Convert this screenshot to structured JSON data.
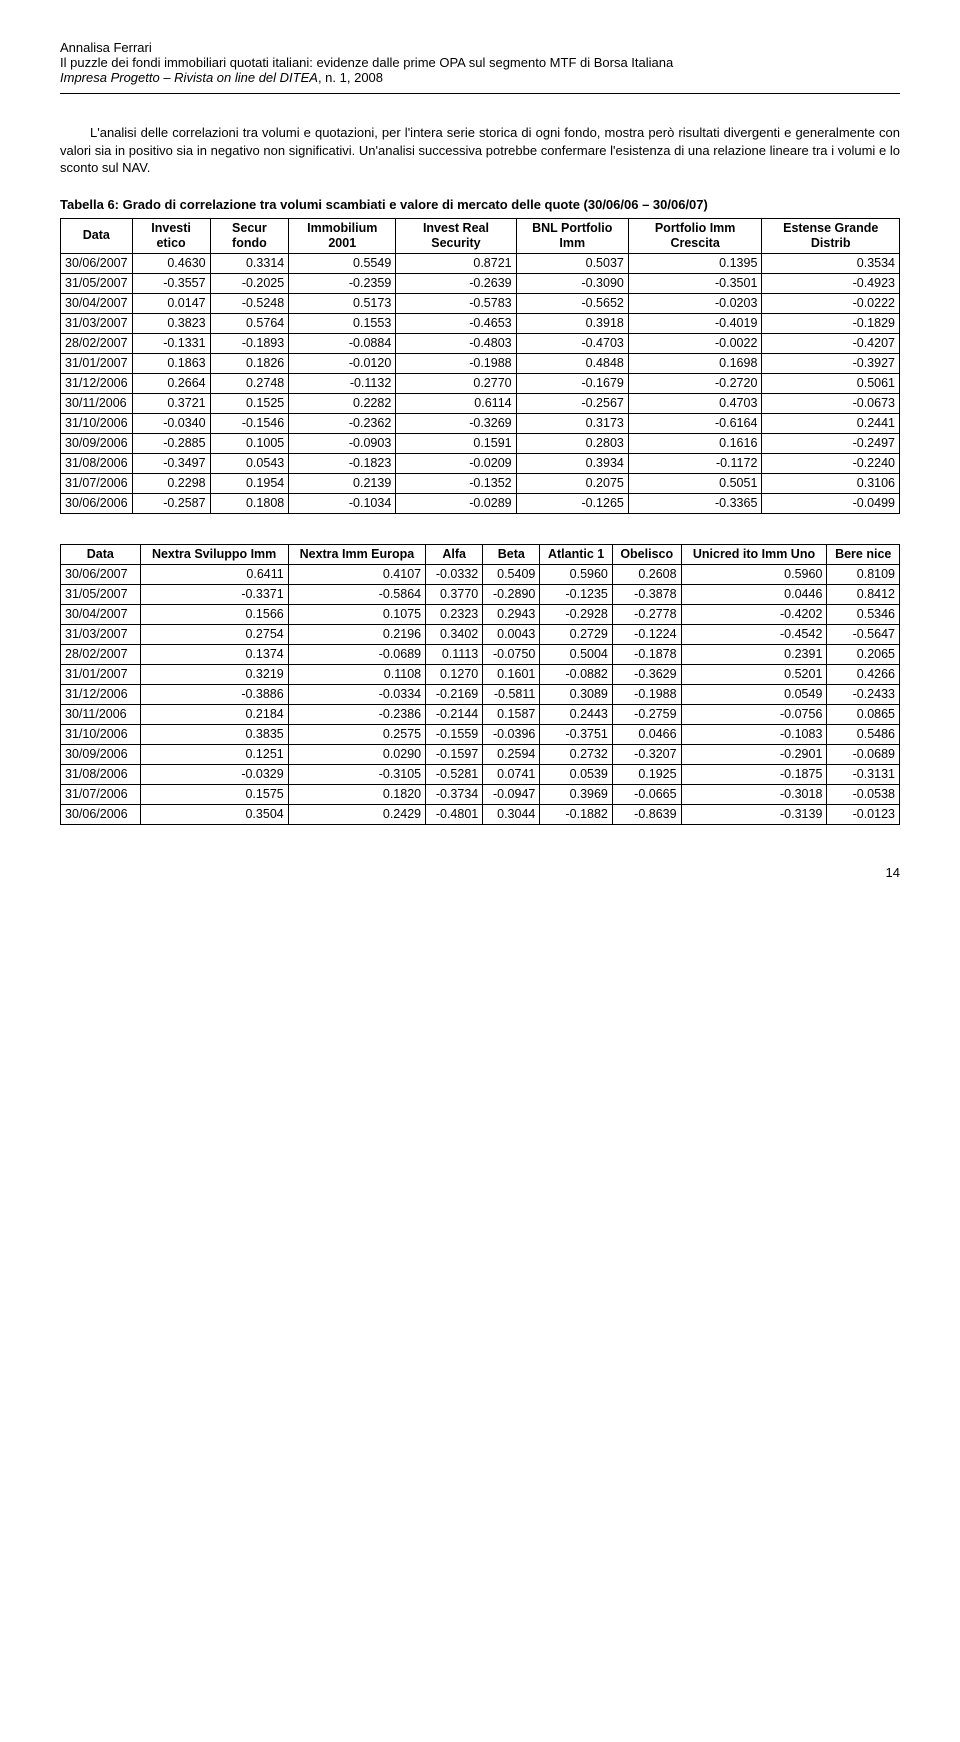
{
  "header": {
    "author": "Annalisa Ferrari",
    "title": "Il puzzle dei fondi immobiliari quotati italiani: evidenze dalle prime OPA sul segmento MTF di Borsa Italiana",
    "journal_italic": "Impresa Progetto – Rivista on line del DITEA",
    "journal_rest": ", n. 1, 2008"
  },
  "paragraph": "L'analisi delle correlazioni tra volumi e quotazioni, per l'intera serie storica di ogni fondo, mostra però risultati divergenti e generalmente con valori sia in positivo sia in negativo non significativi. Un'analisi successiva potrebbe confermare l'esistenza di una relazione lineare tra i volumi e lo sconto sul NAV.",
  "table1": {
    "caption": "Tabella 6: Grado di correlazione tra volumi scambiati e valore di mercato delle quote (30/06/06 – 30/06/07)",
    "headers": [
      "Data",
      "Investi etico",
      "Secur fondo",
      "Immobilium 2001",
      "Invest Real Security",
      "BNL Portfolio Imm",
      "Portfolio Imm Crescita",
      "Estense Grande Distrib"
    ],
    "rows": [
      [
        "30/06/2007",
        "0.4630",
        "0.3314",
        "0.5549",
        "0.8721",
        "0.5037",
        "0.1395",
        "0.3534"
      ],
      [
        "31/05/2007",
        "-0.3557",
        "-0.2025",
        "-0.2359",
        "-0.2639",
        "-0.3090",
        "-0.3501",
        "-0.4923"
      ],
      [
        "30/04/2007",
        "0.0147",
        "-0.5248",
        "0.5173",
        "-0.5783",
        "-0.5652",
        "-0.0203",
        "-0.0222"
      ],
      [
        "31/03/2007",
        "0.3823",
        "0.5764",
        "0.1553",
        "-0.4653",
        "0.3918",
        "-0.4019",
        "-0.1829"
      ],
      [
        "28/02/2007",
        "-0.1331",
        "-0.1893",
        "-0.0884",
        "-0.4803",
        "-0.4703",
        "-0.0022",
        "-0.4207"
      ],
      [
        "31/01/2007",
        "0.1863",
        "0.1826",
        "-0.0120",
        "-0.1988",
        "0.4848",
        "0.1698",
        "-0.3927"
      ],
      [
        "31/12/2006",
        "0.2664",
        "0.2748",
        "-0.1132",
        "0.2770",
        "-0.1679",
        "-0.2720",
        "0.5061"
      ],
      [
        "30/11/2006",
        "0.3721",
        "0.1525",
        "0.2282",
        "0.6114",
        "-0.2567",
        "0.4703",
        "-0.0673"
      ],
      [
        "31/10/2006",
        "-0.0340",
        "-0.1546",
        "-0.2362",
        "-0.3269",
        "0.3173",
        "-0.6164",
        "0.2441"
      ],
      [
        "30/09/2006",
        "-0.2885",
        "0.1005",
        "-0.0903",
        "0.1591",
        "0.2803",
        "0.1616",
        "-0.2497"
      ],
      [
        "31/08/2006",
        "-0.3497",
        "0.0543",
        "-0.1823",
        "-0.0209",
        "0.3934",
        "-0.1172",
        "-0.2240"
      ],
      [
        "31/07/2006",
        "0.2298",
        "0.1954",
        "0.2139",
        "-0.1352",
        "0.2075",
        "0.5051",
        "0.3106"
      ],
      [
        "30/06/2006",
        "-0.2587",
        "0.1808",
        "-0.1034",
        "-0.0289",
        "-0.1265",
        "-0.3365",
        "-0.0499"
      ]
    ]
  },
  "table2": {
    "headers": [
      "Data",
      "Nextra Sviluppo Imm",
      "Nextra Imm Europa",
      "Alfa",
      "Beta",
      "Atlantic 1",
      "Obelisco",
      "Unicred ito Imm Uno",
      "Bere nice"
    ],
    "rows": [
      [
        "30/06/2007",
        "0.6411",
        "0.4107",
        "-0.0332",
        "0.5409",
        "0.5960",
        "0.2608",
        "0.5960",
        "0.8109"
      ],
      [
        "31/05/2007",
        "-0.3371",
        "-0.5864",
        "0.3770",
        "-0.2890",
        "-0.1235",
        "-0.3878",
        "0.0446",
        "0.8412"
      ],
      [
        "30/04/2007",
        "0.1566",
        "0.1075",
        "0.2323",
        "0.2943",
        "-0.2928",
        "-0.2778",
        "-0.4202",
        "0.5346"
      ],
      [
        "31/03/2007",
        "0.2754",
        "0.2196",
        "0.3402",
        "0.0043",
        "0.2729",
        "-0.1224",
        "-0.4542",
        "-0.5647"
      ],
      [
        "28/02/2007",
        "0.1374",
        "-0.0689",
        "0.1113",
        "-0.0750",
        "0.5004",
        "-0.1878",
        "0.2391",
        "0.2065"
      ],
      [
        "31/01/2007",
        "0.3219",
        "0.1108",
        "0.1270",
        "0.1601",
        "-0.0882",
        "-0.3629",
        "0.5201",
        "0.4266"
      ],
      [
        "31/12/2006",
        "-0.3886",
        "-0.0334",
        "-0.2169",
        "-0.5811",
        "0.3089",
        "-0.1988",
        "0.0549",
        "-0.2433"
      ],
      [
        "30/11/2006",
        "0.2184",
        "-0.2386",
        "-0.2144",
        "0.1587",
        "0.2443",
        "-0.2759",
        "-0.0756",
        "0.0865"
      ],
      [
        "31/10/2006",
        "0.3835",
        "0.2575",
        "-0.1559",
        "-0.0396",
        "-0.3751",
        "0.0466",
        "-0.1083",
        "0.5486"
      ],
      [
        "30/09/2006",
        "0.1251",
        "0.0290",
        "-0.1597",
        "0.2594",
        "0.2732",
        "-0.3207",
        "-0.2901",
        "-0.0689"
      ],
      [
        "31/08/2006",
        "-0.0329",
        "-0.3105",
        "-0.5281",
        "0.0741",
        "0.0539",
        "0.1925",
        "-0.1875",
        "-0.3131"
      ],
      [
        "31/07/2006",
        "0.1575",
        "0.1820",
        "-0.3734",
        "-0.0947",
        "0.3969",
        "-0.0665",
        "-0.3018",
        "-0.0538"
      ],
      [
        "30/06/2006",
        "0.3504",
        "0.2429",
        "-0.4801",
        "0.3044",
        "-0.1882",
        "-0.8639",
        "-0.3139",
        "-0.0123"
      ]
    ]
  },
  "page_number": "14"
}
